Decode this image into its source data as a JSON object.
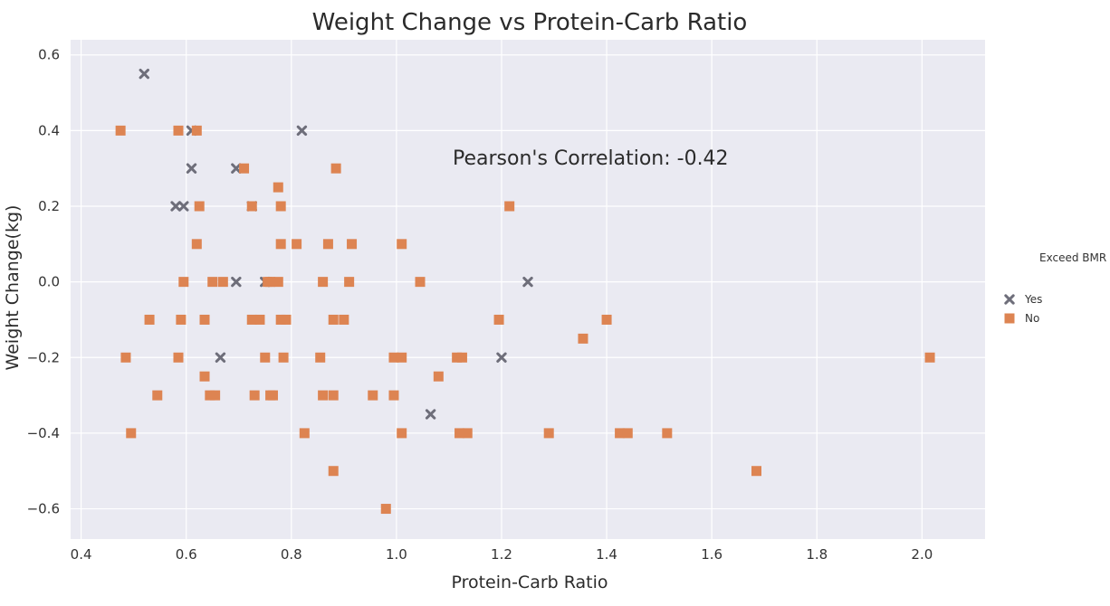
{
  "chart_data": {
    "type": "scatter",
    "title": "Weight Change vs Protein-Carb Ratio",
    "xlabel": "Protein-Carb Ratio",
    "ylabel": "Weight Change(kg)",
    "xlim": [
      0.38,
      2.12
    ],
    "ylim": [
      -0.68,
      0.64
    ],
    "xticks": [
      0.4,
      0.6,
      0.8,
      1.0,
      1.2,
      1.4,
      1.6,
      1.8,
      2.0
    ],
    "xtick_labels": [
      "0.4",
      "0.6",
      "0.8",
      "1.0",
      "1.2",
      "1.4",
      "1.6",
      "1.8",
      "2.0"
    ],
    "yticks": [
      0.6,
      0.4,
      0.2,
      0.0,
      -0.2,
      -0.4,
      -0.6
    ],
    "ytick_labels": [
      "0.6",
      "0.4",
      "0.2",
      "0.0",
      "−0.2",
      "−0.4",
      "−0.6"
    ],
    "grid": true,
    "background": "#eaeaf2",
    "annotation": "Pearson's Correlation: -0.42",
    "legend": {
      "title": "Exceed BMR",
      "placement": "right",
      "entries": [
        {
          "label": "Yes",
          "marker": "x",
          "color": "#6e6e7a"
        },
        {
          "label": "No",
          "marker": "square",
          "color": "#dd8452"
        }
      ]
    },
    "series": [
      {
        "name": "Yes",
        "marker": "x",
        "color": "#6e6e7a",
        "points": [
          [
            0.52,
            0.55
          ],
          [
            0.61,
            0.4
          ],
          [
            0.82,
            0.4
          ],
          [
            0.61,
            0.3
          ],
          [
            0.695,
            0.3
          ],
          [
            0.58,
            0.2
          ],
          [
            0.595,
            0.2
          ],
          [
            0.725,
            0.2
          ],
          [
            0.695,
            0.0
          ],
          [
            0.75,
            0.0
          ],
          [
            1.25,
            0.0
          ],
          [
            0.665,
            -0.2
          ],
          [
            1.2,
            -0.2
          ],
          [
            1.065,
            -0.35
          ]
        ]
      },
      {
        "name": "No",
        "marker": "square",
        "color": "#dd8452",
        "points": [
          [
            0.475,
            0.4
          ],
          [
            0.585,
            0.4
          ],
          [
            0.62,
            0.4
          ],
          [
            0.71,
            0.3
          ],
          [
            0.885,
            0.3
          ],
          [
            0.775,
            0.25
          ],
          [
            0.625,
            0.2
          ],
          [
            0.725,
            0.2
          ],
          [
            0.78,
            0.2
          ],
          [
            1.215,
            0.2
          ],
          [
            0.62,
            0.1
          ],
          [
            0.78,
            0.1
          ],
          [
            0.81,
            0.1
          ],
          [
            0.87,
            0.1
          ],
          [
            0.915,
            0.1
          ],
          [
            1.01,
            0.1
          ],
          [
            0.595,
            0.0
          ],
          [
            0.65,
            0.0
          ],
          [
            0.67,
            0.0
          ],
          [
            0.755,
            0.0
          ],
          [
            0.76,
            0.0
          ],
          [
            0.775,
            0.0
          ],
          [
            0.86,
            0.0
          ],
          [
            0.91,
            0.0
          ],
          [
            1.045,
            0.0
          ],
          [
            0.53,
            -0.1
          ],
          [
            0.59,
            -0.1
          ],
          [
            0.635,
            -0.1
          ],
          [
            0.725,
            -0.1
          ],
          [
            0.74,
            -0.1
          ],
          [
            0.78,
            -0.1
          ],
          [
            0.79,
            -0.1
          ],
          [
            0.88,
            -0.1
          ],
          [
            0.9,
            -0.1
          ],
          [
            1.195,
            -0.1
          ],
          [
            1.4,
            -0.1
          ],
          [
            1.355,
            -0.15
          ],
          [
            0.485,
            -0.2
          ],
          [
            0.585,
            -0.2
          ],
          [
            0.75,
            -0.2
          ],
          [
            0.785,
            -0.2
          ],
          [
            0.855,
            -0.2
          ],
          [
            0.995,
            -0.2
          ],
          [
            1.01,
            -0.2
          ],
          [
            1.115,
            -0.2
          ],
          [
            1.125,
            -0.2
          ],
          [
            2.015,
            -0.2
          ],
          [
            0.635,
            -0.25
          ],
          [
            1.08,
            -0.25
          ],
          [
            0.545,
            -0.3
          ],
          [
            0.645,
            -0.3
          ],
          [
            0.655,
            -0.3
          ],
          [
            0.73,
            -0.3
          ],
          [
            0.76,
            -0.3
          ],
          [
            0.765,
            -0.3
          ],
          [
            0.86,
            -0.3
          ],
          [
            0.88,
            -0.3
          ],
          [
            0.955,
            -0.3
          ],
          [
            0.995,
            -0.3
          ],
          [
            0.495,
            -0.4
          ],
          [
            0.825,
            -0.4
          ],
          [
            1.01,
            -0.4
          ],
          [
            1.12,
            -0.4
          ],
          [
            1.135,
            -0.4
          ],
          [
            1.29,
            -0.4
          ],
          [
            1.425,
            -0.4
          ],
          [
            1.44,
            -0.4
          ],
          [
            1.515,
            -0.4
          ],
          [
            0.88,
            -0.5
          ],
          [
            1.685,
            -0.5
          ],
          [
            0.98,
            -0.6
          ]
        ]
      }
    ]
  }
}
